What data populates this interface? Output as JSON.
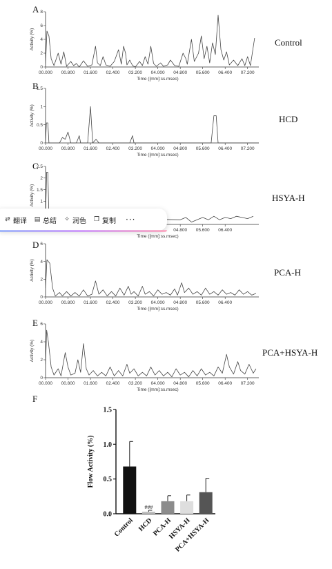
{
  "panels": [
    {
      "letter": "A",
      "group": "Control",
      "xlabel": "Time ([mm]:ss.msec)",
      "ylabel": "Activity (%)",
      "yticks": [
        "0",
        "2",
        "4",
        "6",
        "8"
      ],
      "xticks": [
        "00.000",
        "00.800",
        "01.600",
        "02.400",
        "03.200",
        "04.000",
        "04.800",
        "05.600",
        "06.400",
        "07.200"
      ]
    },
    {
      "letter": "B",
      "group": "HCD",
      "xlabel": "Time ([mm]:ss.msec)",
      "ylabel": "Activity (%)",
      "yticks": [
        "0",
        "0.5",
        "1",
        "1.5"
      ],
      "xticks": [
        "00.000",
        "00.800",
        "01.600",
        "02.400",
        "03.200",
        "04.000",
        "04.800",
        "05.600",
        "06.400",
        "07.200"
      ]
    },
    {
      "letter": "C",
      "group": "HSYA-H",
      "xlabel": "Time ([mm]:ss.msec)",
      "ylabel": "Activity (%)",
      "yticks": [
        "0.5",
        "1",
        "1.5",
        "2",
        "2.5"
      ],
      "xticks": [
        "04.800",
        "05.600",
        "06.400"
      ]
    },
    {
      "letter": "D",
      "group": "PCA-H",
      "xlabel": "Time ([mm]:ss.msec)",
      "ylabel": "Activity (%)",
      "yticks": [
        "0",
        "2",
        "4",
        "6"
      ],
      "xticks": [
        "00.000",
        "00.800",
        "01.600",
        "02.400",
        "03.200",
        "04.000",
        "04.800",
        "05.600",
        "06.400"
      ]
    },
    {
      "letter": "E",
      "group": "PCA+HSYA-H",
      "xlabel": "Time ([mm]:ss.msec)",
      "ylabel": "Activity (%)",
      "yticks": [
        "0",
        "2",
        "4",
        "6"
      ],
      "xticks": [
        "00.000",
        "00.800",
        "01.600",
        "02.400",
        "03.200",
        "04.000",
        "04.800",
        "05.600",
        "06.400",
        "07.200"
      ]
    }
  ],
  "panel_f": {
    "letter": "F",
    "ylabel": "Flow Activity (%)",
    "yticks": [
      "0.0",
      "0.5",
      "1.0",
      "1.5"
    ],
    "annotation": "###"
  },
  "toolbar": {
    "items": [
      {
        "label": "翻译",
        "icon": "translate-icon"
      },
      {
        "label": "总结",
        "icon": "document-icon"
      },
      {
        "label": "润色",
        "icon": "sparkle-icon"
      },
      {
        "label": "复制",
        "icon": "copy-icon"
      }
    ],
    "more": "···"
  },
  "chart_data": [
    {
      "type": "line",
      "xlabel": "Time ([mm]:ss.msec)",
      "ylabel": "Activity (%)",
      "ylim": [
        0,
        8
      ],
      "xlim": [
        0,
        7.6
      ],
      "series": [
        {
          "values": [
            [
              0,
              0.5
            ],
            [
              0.05,
              5.2
            ],
            [
              0.12,
              4.5
            ],
            [
              0.2,
              1.2
            ],
            [
              0.3,
              0.2
            ],
            [
              0.45,
              2.0
            ],
            [
              0.55,
              0.4
            ],
            [
              0.65,
              2.2
            ],
            [
              0.75,
              0.1
            ],
            [
              0.9,
              0.8
            ],
            [
              1.0,
              0.2
            ],
            [
              1.1,
              0.5
            ],
            [
              1.2,
              0.0
            ],
            [
              1.35,
              0.9
            ],
            [
              1.5,
              0.1
            ],
            [
              1.65,
              0.3
            ],
            [
              1.78,
              3.0
            ],
            [
              1.85,
              0.6
            ],
            [
              1.95,
              0.2
            ],
            [
              2.05,
              1.5
            ],
            [
              2.15,
              0.3
            ],
            [
              2.3,
              0.1
            ],
            [
              2.45,
              0.8
            ],
            [
              2.6,
              2.5
            ],
            [
              2.7,
              0.4
            ],
            [
              2.78,
              3.0
            ],
            [
              2.85,
              2.0
            ],
            [
              2.9,
              0.3
            ],
            [
              3.0,
              1.0
            ],
            [
              3.1,
              0.2
            ],
            [
              3.2,
              0.0
            ],
            [
              3.35,
              0.8
            ],
            [
              3.45,
              0.2
            ],
            [
              3.55,
              1.5
            ],
            [
              3.65,
              0.4
            ],
            [
              3.75,
              3.0
            ],
            [
              3.85,
              0.5
            ],
            [
              3.95,
              0.1
            ],
            [
              4.1,
              0.6
            ],
            [
              4.2,
              0.1
            ],
            [
              4.35,
              0.3
            ],
            [
              4.45,
              1.0
            ],
            [
              4.6,
              0.2
            ],
            [
              4.75,
              0.1
            ],
            [
              4.9,
              2.0
            ],
            [
              5.0,
              1.2
            ],
            [
              5.05,
              0.4
            ],
            [
              5.2,
              4.0
            ],
            [
              5.3,
              0.8
            ],
            [
              5.45,
              2.0
            ],
            [
              5.55,
              4.5
            ],
            [
              5.65,
              1.2
            ],
            [
              5.75,
              3.0
            ],
            [
              5.85,
              0.6
            ],
            [
              5.95,
              3.5
            ],
            [
              6.05,
              1.8
            ],
            [
              6.15,
              7.5
            ],
            [
              6.25,
              2.5
            ],
            [
              6.35,
              1.0
            ],
            [
              6.45,
              2.2
            ],
            [
              6.55,
              0.3
            ],
            [
              6.7,
              1.0
            ],
            [
              6.85,
              0.2
            ],
            [
              7.0,
              1.2
            ],
            [
              7.1,
              0.2
            ],
            [
              7.2,
              1.5
            ],
            [
              7.3,
              0.2
            ],
            [
              7.45,
              4.2
            ]
          ]
        }
      ]
    },
    {
      "type": "line",
      "xlabel": "Time ([mm]:ss.msec)",
      "ylabel": "Activity (%)",
      "ylim": [
        0,
        1.5
      ],
      "xlim": [
        0,
        7.6
      ],
      "series": [
        {
          "values": [
            [
              0,
              0.0
            ],
            [
              0.03,
              0.55
            ],
            [
              0.08,
              0.55
            ],
            [
              0.12,
              0.0
            ],
            [
              0.5,
              0.0
            ],
            [
              0.6,
              0.15
            ],
            [
              0.7,
              0.1
            ],
            [
              0.8,
              0.3
            ],
            [
              0.9,
              0.0
            ],
            [
              1.1,
              0.0
            ],
            [
              1.2,
              0.2
            ],
            [
              1.25,
              0.0
            ],
            [
              1.5,
              0.0
            ],
            [
              1.6,
              1.0
            ],
            [
              1.68,
              0.0
            ],
            [
              1.8,
              0.1
            ],
            [
              1.9,
              0.0
            ],
            [
              3.0,
              0.0
            ],
            [
              3.1,
              0.2
            ],
            [
              3.15,
              0.0
            ],
            [
              5.9,
              0.0
            ],
            [
              6.0,
              0.75
            ],
            [
              6.08,
              0.75
            ],
            [
              6.15,
              0.0
            ],
            [
              7.6,
              0.0
            ]
          ]
        }
      ]
    },
    {
      "type": "line",
      "xlabel": "Time ([mm]:ss.msec)",
      "ylabel": "Activity (%)",
      "ylim": [
        0,
        2.5
      ],
      "series": [
        {
          "values": [
            [
              0,
              0.3
            ],
            [
              0.04,
              2.25
            ],
            [
              0.08,
              2.25
            ],
            [
              0.12,
              0.3
            ],
            [
              4.8,
              0.2
            ],
            [
              5.0,
              0.3
            ],
            [
              5.2,
              0.1
            ],
            [
              5.6,
              0.3
            ],
            [
              5.8,
              0.2
            ],
            [
              6.0,
              0.35
            ],
            [
              6.2,
              0.2
            ],
            [
              6.4,
              0.3
            ],
            [
              6.6,
              0.25
            ],
            [
              6.8,
              0.35
            ],
            [
              7.0,
              0.3
            ],
            [
              7.2,
              0.25
            ],
            [
              7.4,
              0.35
            ]
          ]
        }
      ]
    },
    {
      "type": "line",
      "xlabel": "Time ([mm]:ss.msec)",
      "ylabel": "Activity (%)",
      "ylim": [
        0,
        6
      ],
      "xlim": [
        0,
        7.6
      ],
      "series": [
        {
          "values": [
            [
              0,
              1.0
            ],
            [
              0.05,
              4.2
            ],
            [
              0.15,
              3.8
            ],
            [
              0.25,
              1.0
            ],
            [
              0.35,
              0.1
            ],
            [
              0.5,
              0.5
            ],
            [
              0.6,
              0.1
            ],
            [
              0.75,
              0.6
            ],
            [
              0.9,
              0.1
            ],
            [
              1.05,
              0.5
            ],
            [
              1.2,
              0.1
            ],
            [
              1.35,
              0.8
            ],
            [
              1.5,
              0.1
            ],
            [
              1.65,
              0.3
            ],
            [
              1.78,
              1.8
            ],
            [
              1.9,
              0.3
            ],
            [
              2.05,
              0.8
            ],
            [
              2.2,
              0.1
            ],
            [
              2.35,
              0.6
            ],
            [
              2.5,
              0.1
            ],
            [
              2.65,
              1.0
            ],
            [
              2.8,
              0.2
            ],
            [
              2.95,
              1.2
            ],
            [
              3.05,
              0.3
            ],
            [
              3.15,
              0.6
            ],
            [
              3.3,
              0.1
            ],
            [
              3.45,
              1.2
            ],
            [
              3.55,
              0.3
            ],
            [
              3.7,
              0.6
            ],
            [
              3.85,
              0.1
            ],
            [
              4.0,
              0.8
            ],
            [
              4.15,
              0.3
            ],
            [
              4.3,
              0.5
            ],
            [
              4.45,
              0.2
            ],
            [
              4.6,
              0.9
            ],
            [
              4.7,
              0.2
            ],
            [
              4.85,
              1.6
            ],
            [
              4.95,
              0.5
            ],
            [
              5.1,
              1.0
            ],
            [
              5.25,
              0.3
            ],
            [
              5.4,
              0.6
            ],
            [
              5.55,
              0.2
            ],
            [
              5.7,
              1.0
            ],
            [
              5.85,
              0.3
            ],
            [
              6.0,
              0.6
            ],
            [
              6.15,
              0.2
            ],
            [
              6.3,
              0.8
            ],
            [
              6.45,
              0.3
            ],
            [
              6.6,
              0.5
            ],
            [
              6.75,
              0.2
            ],
            [
              6.9,
              0.8
            ],
            [
              7.05,
              0.3
            ],
            [
              7.2,
              0.6
            ],
            [
              7.35,
              0.2
            ],
            [
              7.5,
              0.4
            ]
          ]
        }
      ]
    },
    {
      "type": "line",
      "xlabel": "Time ([mm]:ss.msec)",
      "ylabel": "Activity (%)",
      "ylim": [
        0,
        6
      ],
      "xlim": [
        0,
        7.6
      ],
      "series": [
        {
          "values": [
            [
              0,
              1.5
            ],
            [
              0.04,
              5.3
            ],
            [
              0.1,
              4.0
            ],
            [
              0.2,
              1.2
            ],
            [
              0.3,
              0.3
            ],
            [
              0.45,
              1.0
            ],
            [
              0.55,
              0.2
            ],
            [
              0.7,
              2.8
            ],
            [
              0.8,
              1.2
            ],
            [
              0.9,
              0.3
            ],
            [
              1.05,
              0.5
            ],
            [
              1.15,
              2.0
            ],
            [
              1.25,
              0.6
            ],
            [
              1.35,
              3.8
            ],
            [
              1.45,
              1.0
            ],
            [
              1.55,
              0.3
            ],
            [
              1.7,
              0.8
            ],
            [
              1.85,
              0.2
            ],
            [
              2.0,
              0.6
            ],
            [
              2.15,
              0.2
            ],
            [
              2.3,
              1.2
            ],
            [
              2.45,
              0.2
            ],
            [
              2.6,
              0.8
            ],
            [
              2.75,
              0.2
            ],
            [
              2.9,
              1.5
            ],
            [
              3.0,
              0.5
            ],
            [
              3.15,
              1.0
            ],
            [
              3.3,
              0.2
            ],
            [
              3.45,
              0.6
            ],
            [
              3.6,
              0.2
            ],
            [
              3.75,
              1.2
            ],
            [
              3.9,
              0.3
            ],
            [
              4.05,
              0.8
            ],
            [
              4.2,
              0.2
            ],
            [
              4.35,
              0.6
            ],
            [
              4.5,
              0.1
            ],
            [
              4.65,
              1.0
            ],
            [
              4.8,
              0.3
            ],
            [
              4.95,
              0.6
            ],
            [
              5.1,
              0.1
            ],
            [
              5.25,
              0.8
            ],
            [
              5.4,
              0.2
            ],
            [
              5.55,
              1.0
            ],
            [
              5.7,
              0.3
            ],
            [
              5.85,
              0.6
            ],
            [
              6.0,
              0.2
            ],
            [
              6.15,
              1.2
            ],
            [
              6.3,
              0.5
            ],
            [
              6.45,
              2.6
            ],
            [
              6.55,
              1.2
            ],
            [
              6.7,
              0.4
            ],
            [
              6.85,
              1.8
            ],
            [
              6.95,
              0.8
            ],
            [
              7.1,
              0.4
            ],
            [
              7.25,
              1.5
            ],
            [
              7.4,
              0.5
            ],
            [
              7.5,
              1.0
            ]
          ]
        }
      ]
    },
    {
      "type": "bar",
      "ylabel": "Flow Activity (%)",
      "ylim": [
        0,
        1.5
      ],
      "categories": [
        "Control",
        "HCD",
        "PCA-H",
        "HSYA-H",
        "PCA+HSYA-H"
      ],
      "values": [
        0.68,
        0.03,
        0.18,
        0.18,
        0.31
      ],
      "errors": [
        0.36,
        0.02,
        0.08,
        0.09,
        0.2
      ],
      "colors": [
        "#111111",
        "#bfbfbf",
        "#8c8c8c",
        "#dedede",
        "#555555"
      ]
    }
  ]
}
